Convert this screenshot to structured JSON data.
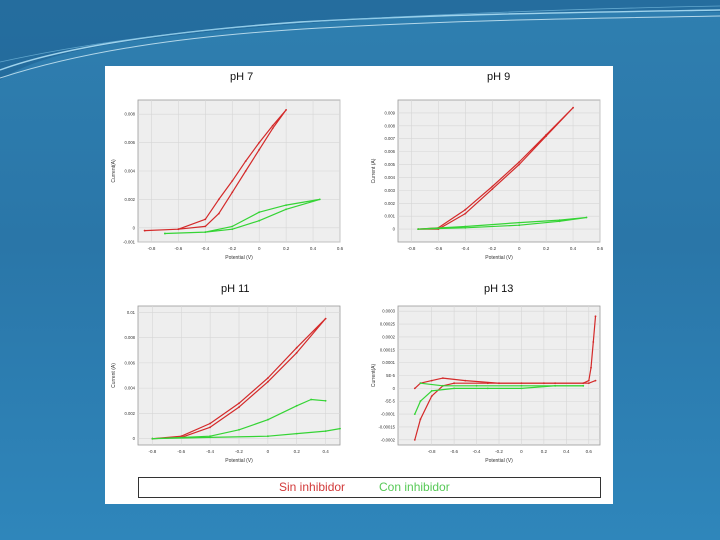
{
  "colors": {
    "sin": "#d42a2a",
    "con": "#35d435"
  },
  "legend": {
    "sin": "Sin inhibidor",
    "con": "Con inhibidor"
  },
  "chart_data": [
    {
      "type": "line",
      "title": "pH 7",
      "xlabel": "Potential (V)",
      "ylabel": "Current(A)",
      "xlim": [
        -0.9,
        0.6
      ],
      "ylim": [
        -0.001,
        0.009
      ],
      "xticks": [
        "-0.8",
        "-0.6",
        "-0.4",
        "-0.2",
        "0",
        "0.2",
        "0.4",
        "0.6"
      ],
      "yticks": [
        "-0.001",
        "0",
        "0.002",
        "0.004",
        "0.006",
        "0.008"
      ],
      "series": [
        {
          "key": "sin",
          "x": [
            -0.85,
            -0.6,
            -0.4,
            -0.3,
            -0.2,
            -0.1,
            0.0,
            0.1,
            0.2,
            0.1,
            0.0,
            -0.1,
            -0.2,
            -0.3,
            -0.4,
            -0.6,
            -0.85
          ],
          "y": [
            -0.0002,
            -0.0001,
            0.0001,
            0.001,
            0.0025,
            0.004,
            0.0055,
            0.007,
            0.0083,
            0.0072,
            0.006,
            0.0047,
            0.0033,
            0.002,
            0.0006,
            -0.0001,
            -0.0002
          ]
        },
        {
          "key": "con",
          "x": [
            -0.7,
            -0.4,
            -0.2,
            0.0,
            0.2,
            0.45,
            0.2,
            0.0,
            -0.2,
            -0.4,
            -0.7
          ],
          "y": [
            -0.0004,
            -0.0003,
            0.0001,
            0.0011,
            0.0016,
            0.002,
            0.0013,
            0.0005,
            -0.0001,
            -0.0003,
            -0.0004
          ]
        }
      ]
    },
    {
      "type": "line",
      "title": "pH 9",
      "xlabel": "Potential (V)",
      "ylabel": "Current (A)",
      "xlim": [
        -0.9,
        0.6
      ],
      "ylim": [
        -0.001,
        0.01
      ],
      "xticks": [
        "-0.8",
        "-0.6",
        "-0.4",
        "-0.2",
        "0",
        "0.2",
        "0.4",
        "0.6"
      ],
      "yticks": [
        "0",
        "0.001",
        "0.002",
        "0.003",
        "0.004",
        "0.005",
        "0.006",
        "0.007",
        "0.008",
        "0.009"
      ],
      "series": [
        {
          "key": "sin",
          "x": [
            -0.75,
            -0.6,
            -0.4,
            -0.2,
            0.0,
            0.2,
            0.4,
            0.2,
            0.0,
            -0.2,
            -0.4,
            -0.6,
            -0.75
          ],
          "y": [
            0.0,
            0.0,
            0.0012,
            0.0031,
            0.005,
            0.0072,
            0.0094,
            0.0073,
            0.0052,
            0.0033,
            0.0015,
            0.0001,
            0.0
          ]
        },
        {
          "key": "con",
          "x": [
            -0.75,
            -0.4,
            0.0,
            0.3,
            0.5,
            0.3,
            0.0,
            -0.4,
            -0.75
          ],
          "y": [
            0.0,
            0.0002,
            0.0005,
            0.0007,
            0.0009,
            0.0006,
            0.0003,
            0.0001,
            0.0
          ]
        }
      ]
    },
    {
      "type": "line",
      "title": "pH 11",
      "xlabel": "Potential (V)",
      "ylabel": "Current (A)",
      "xlim": [
        -0.9,
        0.5
      ],
      "ylim": [
        -0.0005,
        0.0105
      ],
      "xticks": [
        "-0.8",
        "-0.6",
        "-0.4",
        "-0.2",
        "0",
        "0.2",
        "0.4"
      ],
      "yticks": [
        "0",
        "0.002",
        "0.004",
        "0.006",
        "0.008",
        "0.01"
      ],
      "series": [
        {
          "key": "sin",
          "x": [
            -0.8,
            -0.6,
            -0.4,
            -0.2,
            0.0,
            0.2,
            0.4,
            0.2,
            0.0,
            -0.2,
            -0.4,
            -0.6,
            -0.8
          ],
          "y": [
            0.0,
            0.0001,
            0.0009,
            0.0025,
            0.0045,
            0.0068,
            0.0095,
            0.0072,
            0.0048,
            0.0028,
            0.0012,
            0.0002,
            0.0
          ]
        },
        {
          "key": "con",
          "x": [
            -0.8,
            -0.4,
            -0.2,
            0.0,
            0.2,
            0.3,
            0.4
          ],
          "y": [
            0.0,
            0.0002,
            0.0007,
            0.0015,
            0.0026,
            0.0031,
            0.003
          ]
        },
        {
          "key": "con",
          "x": [
            -0.8,
            -0.4,
            0.0,
            0.2,
            0.4,
            0.5
          ],
          "y": [
            0.0,
            0.0001,
            0.0002,
            0.0004,
            0.0006,
            0.0008
          ]
        }
      ]
    },
    {
      "type": "line",
      "title": "pH 13",
      "xlabel": "Potential (V)",
      "ylabel": "Current(A)",
      "xlim": [
        -1.1,
        0.7
      ],
      "ylim": [
        -0.00022,
        0.00032
      ],
      "xticks": [
        "-0.8",
        "-0.6",
        "-0.4",
        "-0.2",
        "0",
        "0.2",
        "0.4",
        "0.6"
      ],
      "yticks": [
        "0.0003",
        "0.00025",
        "0.0002",
        "0.00015",
        "0.0001",
        "5E-5",
        "0",
        "-5E-5",
        "-0.0001",
        "-0.00015",
        "-0.0002"
      ],
      "series": [
        {
          "key": "sin",
          "x": [
            -0.95,
            -0.9,
            -0.8,
            -0.7,
            -0.6,
            -0.3,
            0.0,
            0.3,
            0.55,
            0.6,
            0.62,
            0.64,
            0.66
          ],
          "y": [
            -0.0002,
            -0.00012,
            -3e-05,
            1e-05,
            2e-05,
            2e-05,
            2e-05,
            2e-05,
            2e-05,
            3e-05,
            8e-05,
            0.00018,
            0.00028
          ]
        },
        {
          "key": "sin",
          "x": [
            -0.95,
            -0.9,
            -0.8,
            -0.7,
            -0.5,
            -0.2,
            0.2,
            0.6,
            0.66
          ],
          "y": [
            0.0,
            2e-05,
            3e-05,
            4e-05,
            3e-05,
            2e-05,
            2e-05,
            2e-05,
            3e-05
          ]
        },
        {
          "key": "con",
          "x": [
            -0.95,
            -0.9,
            -0.8,
            -0.6,
            -0.3,
            0.0,
            0.3,
            0.55
          ],
          "y": [
            -0.0001,
            -5e-05,
            -1e-05,
            0.0,
            0.0,
            0.0,
            1e-05,
            1e-05
          ]
        },
        {
          "key": "con",
          "x": [
            -0.9,
            -0.7,
            -0.4,
            0.0,
            0.3,
            0.55
          ],
          "y": [
            2e-05,
            1e-05,
            1e-05,
            1e-05,
            1e-05,
            1e-05
          ]
        }
      ]
    }
  ]
}
